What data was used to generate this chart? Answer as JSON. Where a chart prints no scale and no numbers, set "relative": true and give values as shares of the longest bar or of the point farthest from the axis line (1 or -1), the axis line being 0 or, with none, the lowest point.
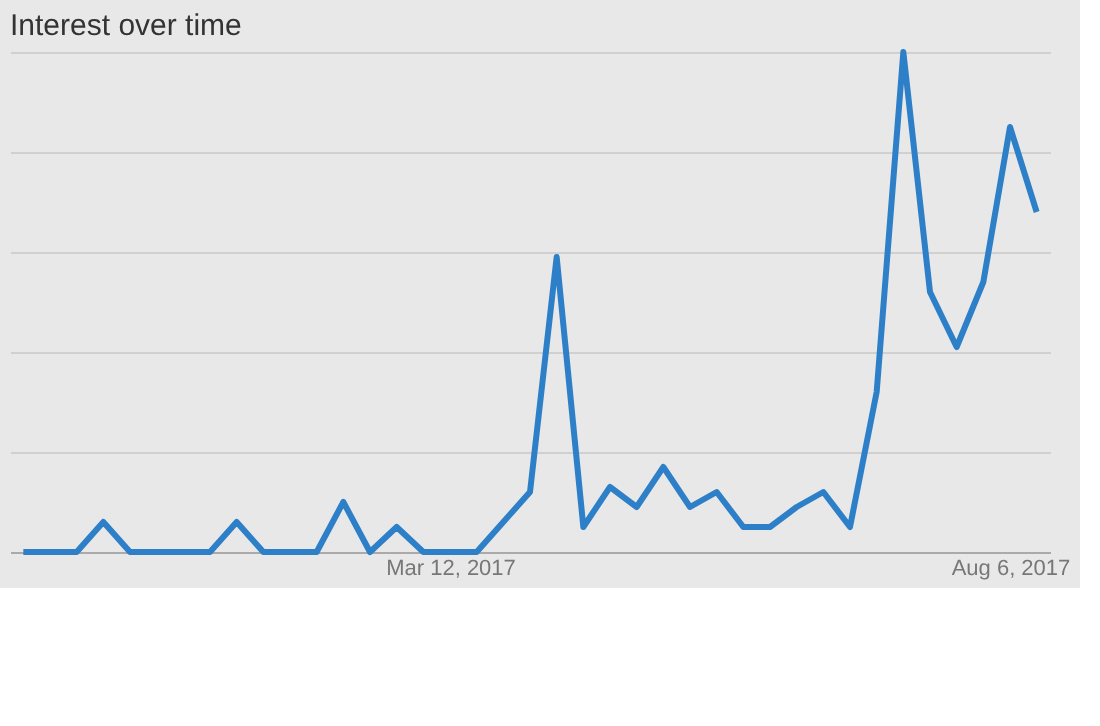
{
  "chart_data": {
    "type": "line",
    "title": "Interest over time",
    "relative": true,
    "grid": "y",
    "legend": false,
    "marker": "none",
    "line_style": "solid",
    "categories": [
      null,
      null,
      null,
      null,
      null,
      null,
      null,
      null,
      null,
      null,
      null,
      null,
      null,
      null,
      null,
      null,
      "Mar 12, 2017",
      null,
      null,
      null,
      null,
      null,
      null,
      null,
      null,
      null,
      null,
      null,
      null,
      null,
      null,
      null,
      null,
      null,
      null,
      null,
      null,
      "Aug 6, 2017",
      null
    ],
    "series": [
      {
        "color": "#2d7fc8",
        "values": [
          0,
          0,
          0,
          0.06,
          0,
          0,
          0,
          0,
          0.06,
          0,
          0,
          0,
          0.1,
          0,
          0.05,
          0,
          0,
          0,
          0.06,
          0.12,
          0.59,
          0.05,
          0.13,
          0.09,
          0.17,
          0.09,
          0.12,
          0.05,
          0.05,
          0.09,
          0.12,
          0.05,
          0.32,
          1,
          0.52,
          0.41,
          0.54,
          0.85,
          0.68
        ]
      }
    ]
  }
}
